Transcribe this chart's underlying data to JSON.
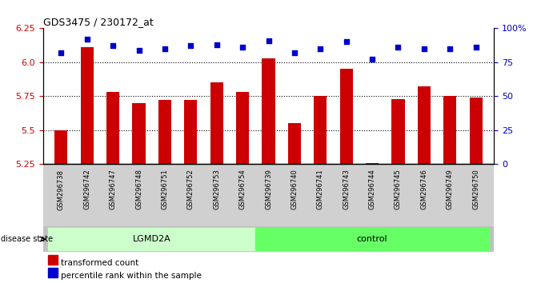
{
  "title": "GDS3475 / 230172_at",
  "samples": [
    "GSM296738",
    "GSM296742",
    "GSM296747",
    "GSM296748",
    "GSM296751",
    "GSM296752",
    "GSM296753",
    "GSM296754",
    "GSM296739",
    "GSM296740",
    "GSM296741",
    "GSM296743",
    "GSM296744",
    "GSM296745",
    "GSM296746",
    "GSM296749",
    "GSM296750"
  ],
  "bar_values": [
    5.5,
    6.11,
    5.78,
    5.7,
    5.72,
    5.72,
    5.85,
    5.78,
    6.03,
    5.55,
    5.75,
    5.95,
    5.26,
    5.73,
    5.82,
    5.75,
    5.74
  ],
  "percentile_values": [
    82,
    92,
    87,
    84,
    85,
    87,
    88,
    86,
    91,
    82,
    85,
    90,
    77,
    86,
    85,
    85,
    86
  ],
  "bar_color": "#cc0000",
  "dot_color": "#0000cc",
  "ylim_left": [
    5.25,
    6.25
  ],
  "ylim_right": [
    0,
    100
  ],
  "yticks_left": [
    5.25,
    5.5,
    5.75,
    6.0,
    6.25
  ],
  "yticks_right": [
    0,
    25,
    50,
    75,
    100
  ],
  "ytick_labels_right": [
    "0",
    "25",
    "50",
    "75",
    "100%"
  ],
  "grid_values": [
    5.5,
    5.75,
    6.0
  ],
  "lgmd2a_indices": [
    0,
    1,
    2,
    3,
    4,
    5,
    6,
    7
  ],
  "control_indices": [
    8,
    9,
    10,
    11,
    12,
    13,
    14,
    15,
    16
  ],
  "lgmd2a_color": "#ccffcc",
  "control_color": "#66ff66",
  "disease_state_label": "disease state",
  "lgmd2a_label": "LGMD2A",
  "control_label": "control",
  "legend_bar_label": "transformed count",
  "legend_dot_label": "percentile rank within the sample",
  "xtick_bg_color": "#d0d0d0",
  "disease_strip_color": "#c0c0c0",
  "plot_bg_color": "#ffffff",
  "bar_width": 0.5
}
